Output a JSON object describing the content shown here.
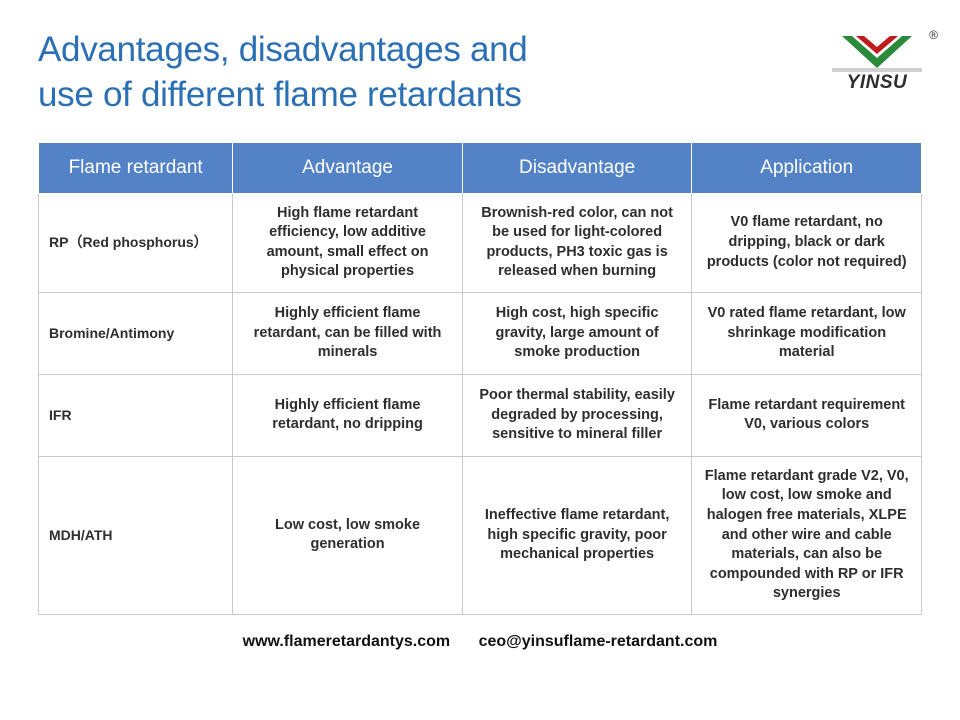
{
  "title_line1": "Advantages, disadvantages and",
  "title_line2": "use of different flame retardants",
  "brand": "YINSU",
  "logo": {
    "chevron_green": "#2a8a3a",
    "chevron_red": "#c11a1a",
    "stripe": "#d0d0d0"
  },
  "table": {
    "header_bg": "#5382c6",
    "header_fg": "#ffffff",
    "border_color": "#c9c9c9",
    "columns": [
      "Flame retardant",
      "Advantage",
      "Disadvantage",
      "Application"
    ],
    "rows": [
      {
        "name": "RP（Red phosphorus）",
        "advantage": "High flame retardant efficiency, low additive amount, small effect on physical properties",
        "disadvantage": "Brownish-red color, can not be used for light-colored products, PH3 toxic gas is released when burning",
        "application": "V0 flame retardant, no dripping, black or dark products (color not required)",
        "min_h": 96
      },
      {
        "name": "Bromine/Antimony",
        "advantage": "Highly efficient flame retardant, can be filled with minerals",
        "disadvantage": "High cost, high specific gravity, large amount of smoke production",
        "application": "V0 rated flame retardant, low shrinkage modification material",
        "min_h": 82
      },
      {
        "name": "IFR",
        "advantage": "Highly efficient flame retardant, no dripping",
        "disadvantage": "Poor thermal stability, easily degraded by processing, sensitive to mineral filler",
        "application": "Flame retardant requirement V0, various colors",
        "min_h": 82
      },
      {
        "name": "MDH/ATH",
        "advantage": "Low cost, low smoke generation",
        "disadvantage": "Ineffective flame retardant, high specific gravity, poor mechanical properties",
        "application": "Flame retardant grade V2, V0, low cost, low smoke and halogen free materials, XLPE and other wire and cable materials, can also be compounded with RP or IFR synergies",
        "min_h": 150
      }
    ]
  },
  "footer": {
    "website": "www.flameretardantys.com",
    "email": "ceo@yinsuflame-retardant.com"
  }
}
